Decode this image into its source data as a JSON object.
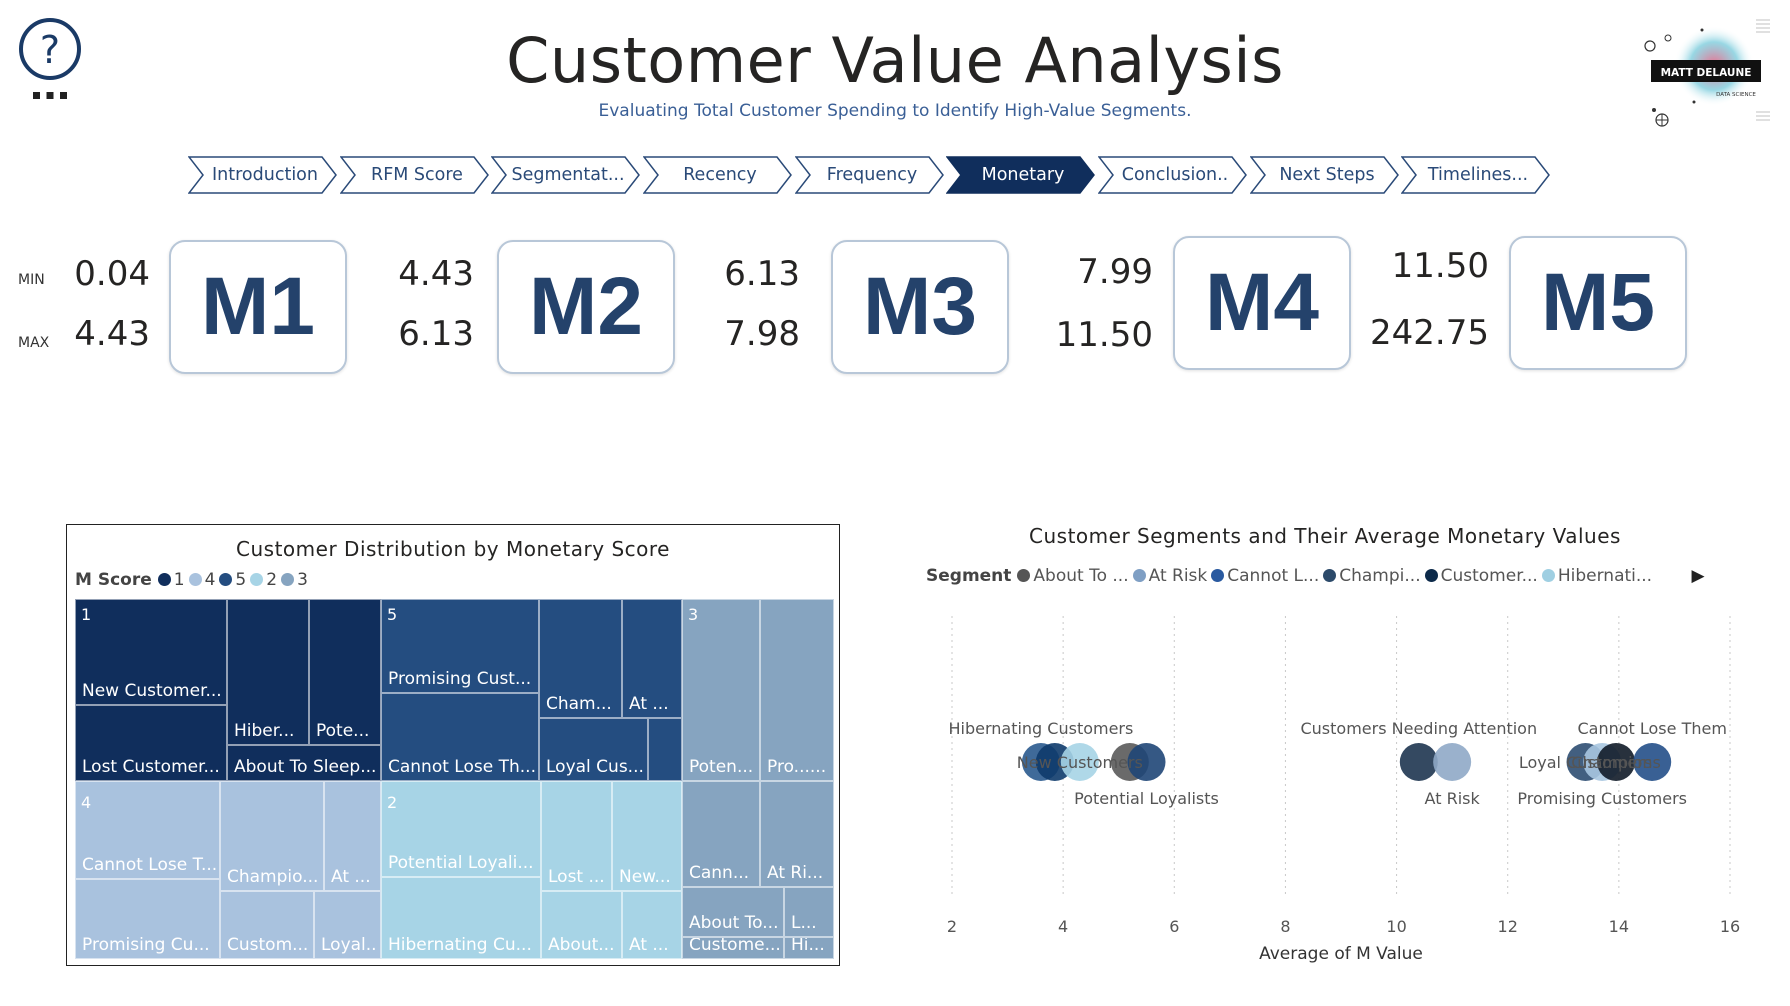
{
  "header": {
    "title": "Customer Value Analysis",
    "subtitle": "Evaluating Total Customer Spending to Identify High-Value Segments.",
    "logo_text": "MATT DELAUNE",
    "logo_subtext": "DATA SCIENCE"
  },
  "nav": [
    {
      "label": "Introduction",
      "active": false
    },
    {
      "label": "RFM Score",
      "active": false
    },
    {
      "label": "Segmentat...",
      "active": false
    },
    {
      "label": "Recency",
      "active": false
    },
    {
      "label": "Frequency",
      "active": false
    },
    {
      "label": "Monetary",
      "active": true
    },
    {
      "label": "Conclusion..",
      "active": false
    },
    {
      "label": "Next Steps",
      "active": false
    },
    {
      "label": "Timelines...",
      "active": false
    }
  ],
  "kpi": {
    "min_label": "MIN",
    "max_label": "MAX",
    "cards": [
      {
        "name": "M1",
        "min": "0.04",
        "max": "4.43"
      },
      {
        "name": "M2",
        "min": "4.43",
        "max": "6.13"
      },
      {
        "name": "M3",
        "min": "6.13",
        "max": "7.98"
      },
      {
        "name": "M4",
        "min": "7.99",
        "max": "11.50"
      },
      {
        "name": "M5",
        "min": "11.50",
        "max": "242.75"
      }
    ]
  },
  "treemap": {
    "title": "Customer Distribution by Monetary Score",
    "legend_title": "M Score",
    "legend": [
      {
        "label": "1",
        "color": "#102e5c"
      },
      {
        "label": "4",
        "color": "#a9c2de"
      },
      {
        "label": "5",
        "color": "#244d80"
      },
      {
        "label": "2",
        "color": "#a7d4e6"
      },
      {
        "label": "3",
        "color": "#86a4c0"
      }
    ],
    "groups": [
      {
        "label": "1",
        "color": "#102e5c",
        "cells": [
          {
            "label": "New Customer..."
          },
          {
            "label": "Lost Customer..."
          },
          {
            "label": "Hiber..."
          },
          {
            "label": "Pote..."
          },
          {
            "label": "About To Sleep..."
          }
        ]
      },
      {
        "label": "5",
        "color": "#244d80",
        "cells": [
          {
            "label": "Promising Cust..."
          },
          {
            "label": "Cannot Lose Th..."
          },
          {
            "label": "Cham..."
          },
          {
            "label": "At ..."
          },
          {
            "label": "Loyal Cus..."
          },
          {
            "label": ""
          }
        ]
      },
      {
        "label": "3",
        "color": "#86a4c0",
        "cells": [
          {
            "label": "Poten..."
          },
          {
            "label": "Pro......"
          },
          {
            "label": "Cann..."
          },
          {
            "label": "At Ri..."
          },
          {
            "label": "About To..."
          },
          {
            "label": "L..."
          },
          {
            "label": "Custome..."
          },
          {
            "label": "Hi..."
          }
        ]
      },
      {
        "label": "4",
        "color": "#a9c2de",
        "cells": [
          {
            "label": "Cannot Lose T..."
          },
          {
            "label": "Promising Cu..."
          },
          {
            "label": "Champio..."
          },
          {
            "label": "At ..."
          },
          {
            "label": "Custom..."
          },
          {
            "label": "Loyal..."
          }
        ]
      },
      {
        "label": "2",
        "color": "#a7d4e6",
        "cells": [
          {
            "label": "Potential Loyali..."
          },
          {
            "label": "Hibernating Cu..."
          },
          {
            "label": "Lost ..."
          },
          {
            "label": "New..."
          },
          {
            "label": "About..."
          },
          {
            "label": "At ..."
          }
        ]
      }
    ]
  },
  "chart_data": {
    "type": "scatter",
    "title": "Customer Segments and Their Average Monetary Values",
    "legend_title": "Segment",
    "legend": [
      {
        "label": "About To ...",
        "color": "#555555"
      },
      {
        "label": "At Risk",
        "color": "#7f9fc4"
      },
      {
        "label": "Cannot L...",
        "color": "#2a5aa0"
      },
      {
        "label": "Champi...",
        "color": "#2c4a6a"
      },
      {
        "label": "Customer...",
        "color": "#0d2a4a"
      },
      {
        "label": "Hibernati...",
        "color": "#9fcfe2"
      }
    ],
    "xlabel": "Average of M Value",
    "ylabel": "",
    "xlim": [
      2,
      16
    ],
    "xticks": [
      2,
      4,
      6,
      8,
      10,
      12,
      14,
      16
    ],
    "grid": true,
    "points": [
      {
        "name": "Hibernating Customers",
        "x": 3.6,
        "color": "#2a5a8e",
        "label": "Hibernating Customers",
        "label_pos": "above"
      },
      {
        "name": "Hibernating Customers",
        "x": 3.85,
        "color": "#0e3b6b",
        "label": "",
        "label_pos": ""
      },
      {
        "name": "New Customers",
        "x": 4.3,
        "color": "#a6d4e6",
        "label": "New Customers",
        "label_pos": "center"
      },
      {
        "name": "About To Sleep",
        "x": 5.2,
        "color": "#5a5a5a",
        "label": "",
        "label_pos": ""
      },
      {
        "name": "Potential Loyalists",
        "x": 5.5,
        "color": "#1f4677",
        "label": "Potential Loyalists",
        "label_pos": "below"
      },
      {
        "name": "Customers Needing Attention",
        "x": 10.4,
        "color": "#1e3550",
        "label": "Customers Needing Attention",
        "label_pos": "above"
      },
      {
        "name": "At Risk",
        "x": 11.0,
        "color": "#8fa9c6",
        "label": "At Risk",
        "label_pos": "below"
      },
      {
        "name": "Loyal Customers",
        "x": 13.4,
        "color": "#2e4e72",
        "label": "Loyal Customers",
        "label_pos": "center"
      },
      {
        "name": "Promising Customers",
        "x": 13.7,
        "color": "#a9c7e0",
        "label": "Promising Customers",
        "label_pos": "below"
      },
      {
        "name": "Champions",
        "x": 13.95,
        "color": "#111b28",
        "label": "Champions",
        "label_pos": "center"
      },
      {
        "name": "Cannot Lose Them",
        "x": 14.6,
        "color": "#244f88",
        "label": "Cannot Lose Them",
        "label_pos": "above"
      }
    ]
  }
}
